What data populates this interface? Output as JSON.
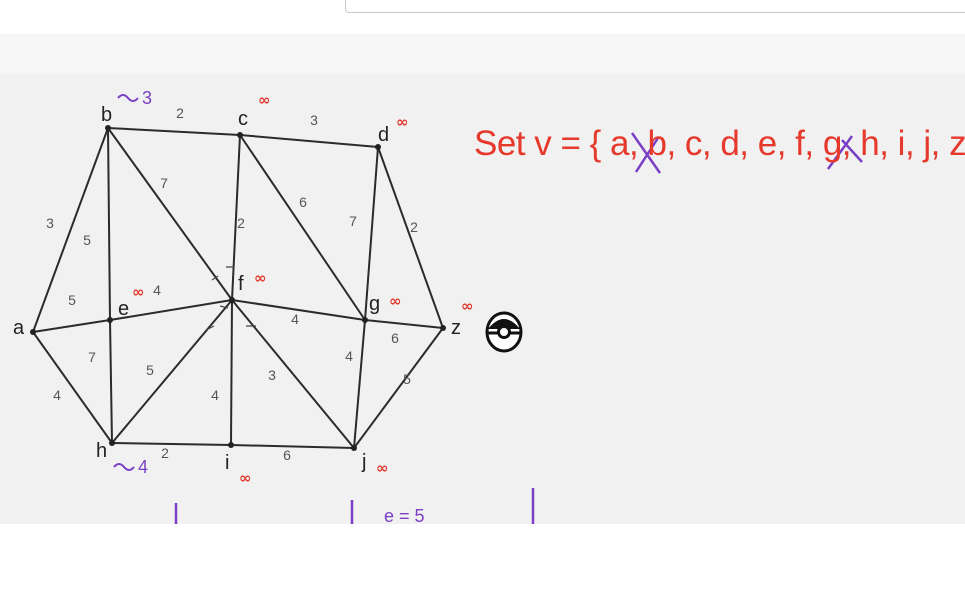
{
  "set_label": "Set v = { a, b, c, d, e, f, g, h, i, j, z }",
  "colors": {
    "edge": "#2b2b2b",
    "infinity": "#e23a2f",
    "set_text": "#e6392c",
    "annotation": "#7a3fc4"
  },
  "infinity_symbol": "∞",
  "graph": {
    "vertices": [
      {
        "id": "a",
        "label": "a"
      },
      {
        "id": "b",
        "label": "b"
      },
      {
        "id": "c",
        "label": "c"
      },
      {
        "id": "d",
        "label": "d"
      },
      {
        "id": "e",
        "label": "e"
      },
      {
        "id": "f",
        "label": "f"
      },
      {
        "id": "g",
        "label": "g"
      },
      {
        "id": "h",
        "label": "h"
      },
      {
        "id": "i",
        "label": "i"
      },
      {
        "id": "j",
        "label": "j"
      },
      {
        "id": "z",
        "label": "z"
      }
    ],
    "edges": [
      {
        "from": "a",
        "to": "b",
        "weight": "3"
      },
      {
        "from": "a",
        "to": "e",
        "weight": "5"
      },
      {
        "from": "a",
        "to": "h",
        "weight": "4"
      },
      {
        "from": "b",
        "to": "c",
        "weight": "2"
      },
      {
        "from": "b",
        "to": "e",
        "weight": "5"
      },
      {
        "from": "b",
        "to": "f",
        "weight": "7"
      },
      {
        "from": "c",
        "to": "d",
        "weight": "3"
      },
      {
        "from": "c",
        "to": "f",
        "weight": "2"
      },
      {
        "from": "c",
        "to": "g",
        "weight": "6"
      },
      {
        "from": "d",
        "to": "g",
        "weight": "7"
      },
      {
        "from": "d",
        "to": "z",
        "weight": "2"
      },
      {
        "from": "e",
        "to": "f",
        "weight": "4"
      },
      {
        "from": "e",
        "to": "h",
        "weight": "7"
      },
      {
        "from": "f",
        "to": "g",
        "weight": "4"
      },
      {
        "from": "f",
        "to": "h",
        "weight": "5"
      },
      {
        "from": "f",
        "to": "i",
        "weight": "4"
      },
      {
        "from": "f",
        "to": "j",
        "weight": "3"
      },
      {
        "from": "g",
        "to": "z",
        "weight": "6"
      },
      {
        "from": "g",
        "to": "j",
        "weight": "4"
      },
      {
        "from": "h",
        "to": "i",
        "weight": "2"
      },
      {
        "from": "i",
        "to": "j",
        "weight": "6"
      },
      {
        "from": "j",
        "to": "z",
        "weight": "5"
      }
    ],
    "infinity_marks": [
      "c",
      "d",
      "e",
      "f",
      "g",
      "i",
      "j",
      "z"
    ],
    "handwritten": [
      {
        "vertex": "b",
        "text": "3"
      },
      {
        "vertex": "h",
        "text": "4"
      }
    ],
    "bottom_note": "e = 5"
  }
}
